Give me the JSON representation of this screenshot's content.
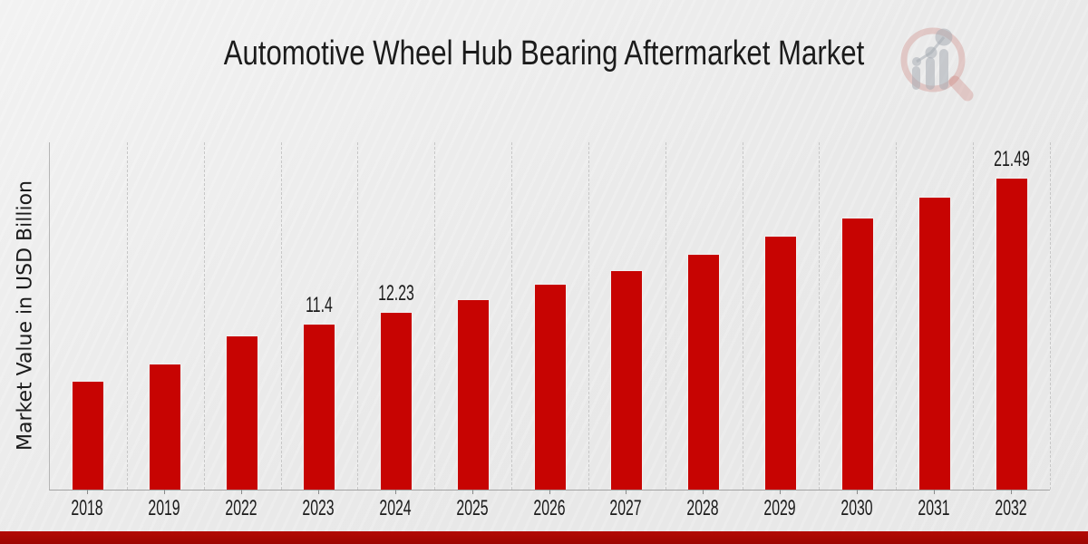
{
  "page": {
    "title": "Automotive Wheel Hub Bearing Aftermarket Market",
    "ylabel": "Market Value in USD Billion"
  },
  "branding": {
    "logo_icon": "magnifier-bar-chart-logo"
  },
  "colors": {
    "bar": "#c70402",
    "bar_edge": "#f2efef",
    "footer_band": "#b30b03",
    "title_text": "#1b1b1b",
    "axis_line": "#a3a3a3",
    "gridline": "#c7c7c7",
    "background": "#eaeaea",
    "logo_red_faded": "#d8a9a6",
    "logo_gray_faded": "#b9bdc4"
  },
  "chart_data": {
    "type": "bar",
    "title": "Automotive Wheel Hub Bearing Aftermarket Market",
    "xlabel": "",
    "ylabel": "Market Value in USD Billion",
    "categories": [
      "2018",
      "2019",
      "2022",
      "2023",
      "2024",
      "2025",
      "2026",
      "2027",
      "2028",
      "2029",
      "2030",
      "2031",
      "2032"
    ],
    "values": [
      7.5,
      8.7,
      10.6,
      11.4,
      12.23,
      13.1,
      14.15,
      15.1,
      16.25,
      17.45,
      18.75,
      20.15,
      21.49
    ],
    "data_labels": [
      "",
      "",
      "",
      "11.4",
      "12.23",
      "",
      "",
      "",
      "",
      "",
      "",
      "",
      "21.49"
    ],
    "bar_color": "#c70402",
    "ylim": [
      0,
      23.9
    ],
    "grid": "vertical-dashed",
    "legend": "none",
    "y_tick_labels": "none"
  }
}
